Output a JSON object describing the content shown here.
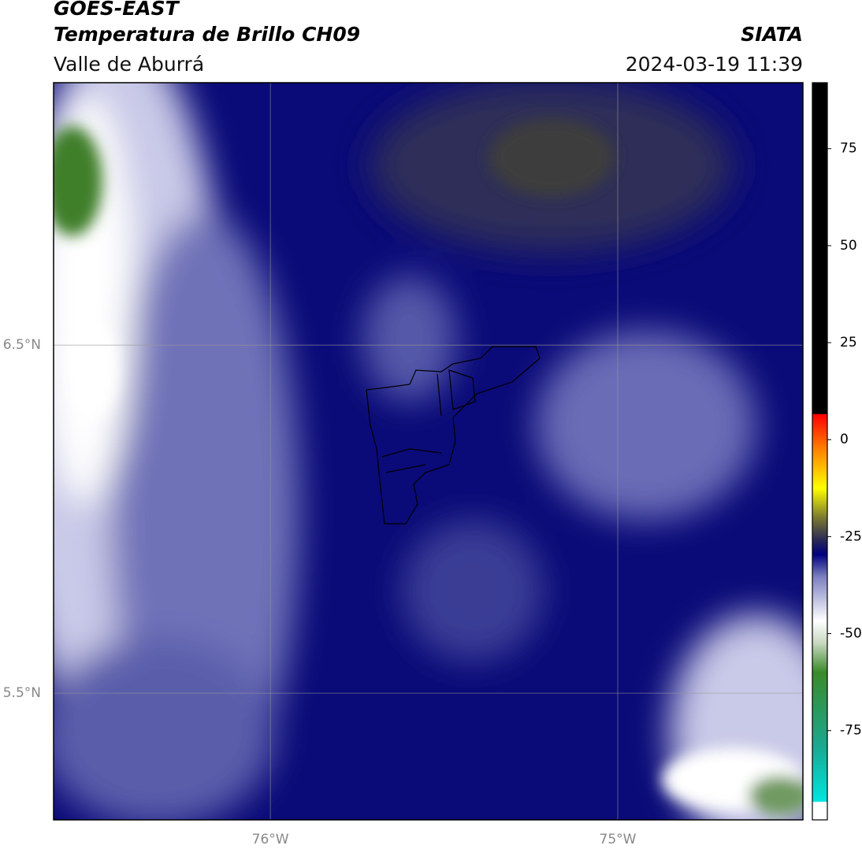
{
  "header": {
    "title": "GOES-EAST",
    "subtitle": "Temperatura de Brillo CH09",
    "region": "Valle de Aburrá",
    "source": "SIATA",
    "datetime": "2024-03-19 11:39"
  },
  "map": {
    "latlim": [
      5.136,
      7.254
    ],
    "lonlim": [
      -76.624,
      -74.467
    ],
    "lat_ticks": [
      {
        "value": 6.5,
        "label": "6.5°N"
      },
      {
        "value": 5.5,
        "label": "5.5°N"
      }
    ],
    "lon_ticks": [
      {
        "value": -76,
        "label": "76°W"
      },
      {
        "value": -75,
        "label": "75°W"
      }
    ]
  },
  "colorbar": {
    "lim": [
      -98,
      92
    ],
    "ticks": [
      75,
      50,
      25,
      0,
      -25,
      -50,
      -75
    ]
  }
}
